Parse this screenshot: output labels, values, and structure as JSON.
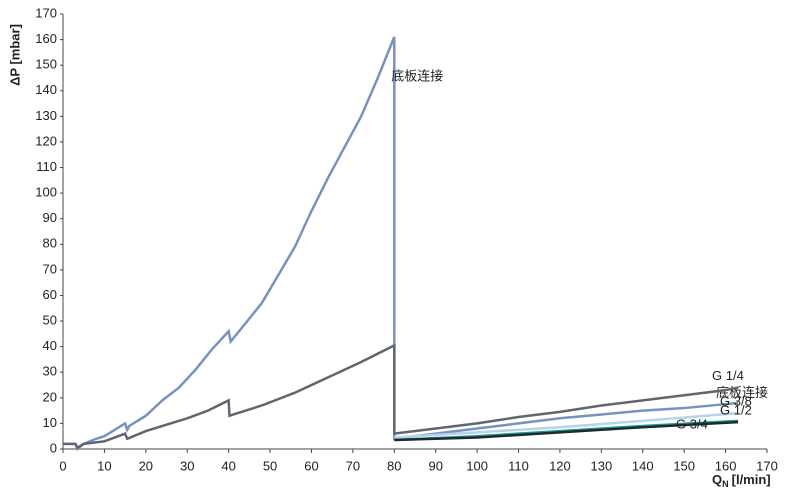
{
  "chart_data": {
    "type": "line",
    "y_label": "ΔP [mbar]",
    "x_label": "Q",
    "x_label_sub": "N",
    "x_label_unit": "[l/min]",
    "xlim": [
      0,
      170
    ],
    "xticks": [
      0,
      10,
      20,
      30,
      40,
      50,
      60,
      70,
      80,
      90,
      100,
      110,
      120,
      130,
      140,
      150,
      160,
      170
    ],
    "ylim": [
      0,
      170
    ],
    "yticks": [
      0,
      10,
      20,
      30,
      40,
      50,
      60,
      70,
      80,
      90,
      100,
      110,
      120,
      130,
      140,
      150,
      160,
      170
    ],
    "series": [
      {
        "name": "底板连接",
        "color": "#7592c2",
        "x": [
          0,
          3,
          3.5,
          5,
          8,
          10,
          14,
          15,
          15.5,
          16,
          20,
          24,
          28,
          32,
          36,
          40,
          40.5,
          44,
          48,
          52,
          56,
          60,
          64,
          68,
          72,
          76,
          80,
          80,
          90,
          100,
          110,
          120,
          130,
          140,
          150,
          163
        ],
        "values": [
          2,
          2,
          0,
          2,
          4,
          5,
          9,
          10,
          7.5,
          9,
          13,
          19,
          24,
          31,
          39,
          46,
          42,
          49,
          57,
          68,
          79,
          93,
          106,
          118,
          130,
          145,
          161,
          4,
          6,
          8,
          10,
          12,
          13.5,
          15,
          16,
          18
        ]
      },
      {
        "name": "G 1/4",
        "color": "#5f6670",
        "x": [
          0,
          3,
          3.5,
          5,
          10,
          15,
          15.5,
          20,
          25,
          30,
          35,
          40,
          40.2,
          48,
          56,
          64,
          72,
          80,
          80,
          90,
          100,
          110,
          120,
          130,
          140,
          150,
          160,
          163
        ],
        "values": [
          2,
          2,
          0.5,
          2,
          3,
          6,
          4,
          7,
          9.5,
          12,
          15,
          19,
          13,
          17,
          22,
          28,
          34,
          40.5,
          6,
          8,
          10,
          12.5,
          14.5,
          17,
          19,
          21,
          23,
          24
        ]
      },
      {
        "name": "G 3/8",
        "color": "#b7d3ea",
        "x": [
          80,
          100,
          120,
          140,
          163
        ],
        "values": [
          4.5,
          6.5,
          8.5,
          11,
          14
        ]
      },
      {
        "name": "G 1/2",
        "color": "#1a9c95",
        "x": [
          80,
          100,
          120,
          140,
          163
        ],
        "values": [
          3.5,
          5,
          7,
          9,
          11
        ]
      },
      {
        "name": "G 3/4",
        "color": "#1d2a30",
        "x": [
          80,
          100,
          120,
          140,
          163
        ],
        "values": [
          3.5,
          4.5,
          6.5,
          8.5,
          10.5
        ]
      }
    ]
  }
}
